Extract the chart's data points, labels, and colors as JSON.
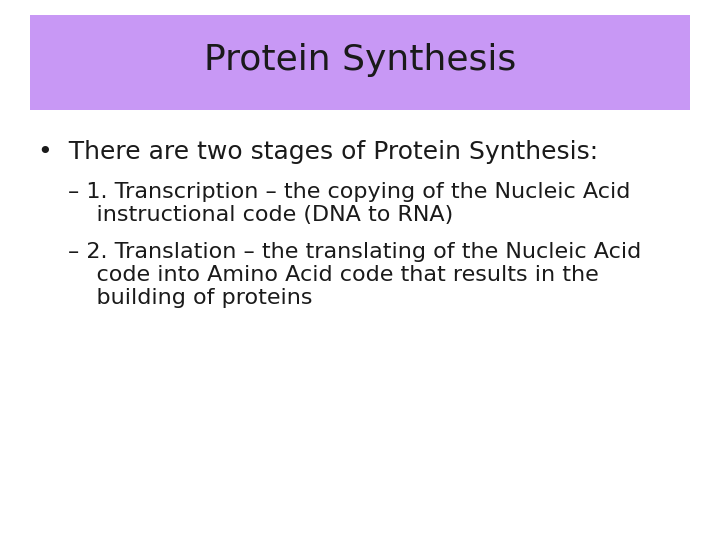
{
  "title": "Protein Synthesis",
  "title_bg_color": "#C898F5",
  "title_font_size": 26,
  "title_font_color": "#1a1a1a",
  "background_color": "#ffffff",
  "bullet_text": "There are two stages of Protein Synthesis:",
  "bullet_font_size": 18,
  "sub_bullet_1_line1": "– 1. Transcription – the copying of the Nucleic Acid",
  "sub_bullet_1_line2": "    instructional code (DNA to RNA)",
  "sub_bullet_2_line1": "– 2. Translation – the translating of the Nucleic Acid",
  "sub_bullet_2_line2": "    code into Amino Acid code that results in the",
  "sub_bullet_2_line3": "    building of proteins",
  "sub_font_size": 16,
  "text_color": "#1a1a1a",
  "figsize": [
    7.2,
    5.4
  ],
  "dpi": 100
}
